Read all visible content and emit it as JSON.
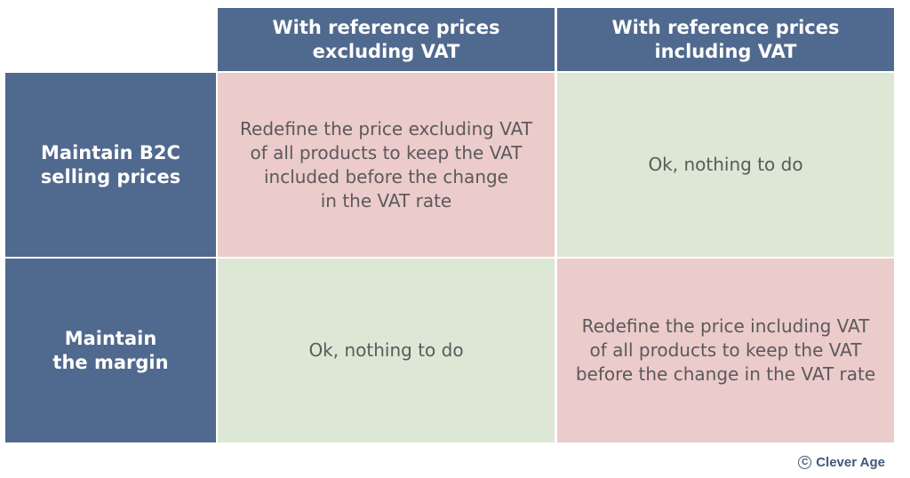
{
  "matrix": {
    "column_headers": [
      "With reference prices\nexcluding VAT",
      "With reference prices\nincluding VAT"
    ],
    "row_headers": [
      "Maintain B2C\nselling prices",
      "Maintain\nthe margin"
    ],
    "cells": [
      [
        "Redefine the price excluding VAT\nof all products to keep the VAT\nincluded before the change\nin the VAT rate",
        "Ok, nothing to do"
      ],
      [
        "Ok, nothing to do",
        "Redefine the price including VAT\nof all products to keep the VAT\nbefore the change in the VAT rate"
      ]
    ]
  },
  "colors": {
    "header": "#50698e",
    "action_required": "#eccbcb",
    "no_action": "#dde7d6"
  },
  "credit": {
    "symbol": "C",
    "text": "Clever Age"
  }
}
